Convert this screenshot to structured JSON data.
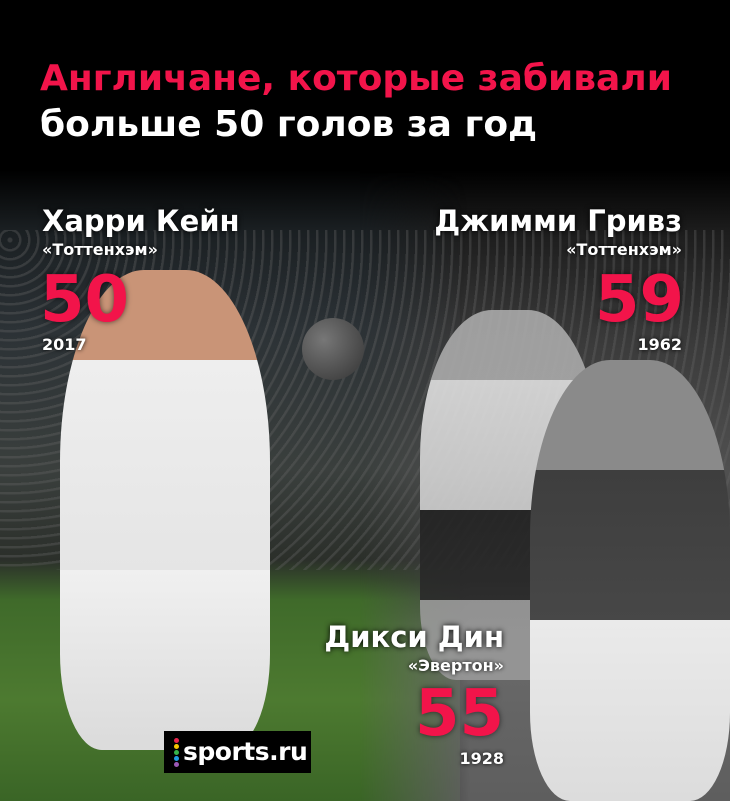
{
  "title": {
    "line1": "Англичане, которые забивали",
    "line2": "больше 50 голов за год"
  },
  "players": [
    {
      "name": "Харри Кейн",
      "club": "«Тоттенхэм»",
      "goals": "50",
      "year": "2017"
    },
    {
      "name": "Джимми Гривз",
      "club": "«Тоттенхэм»",
      "goals": "59",
      "year": "1962"
    },
    {
      "name": "Дикси Дин",
      "club": "«Эвертон»",
      "goals": "55",
      "year": "1928"
    }
  ],
  "logo": {
    "text": "sports.ru",
    "dot_colors": [
      "#e8234a",
      "#f5c400",
      "#35b34a",
      "#1e9be0",
      "#9b59b6"
    ]
  },
  "colors": {
    "accent": "#f2144a",
    "text": "#ffffff",
    "background": "#000000"
  }
}
